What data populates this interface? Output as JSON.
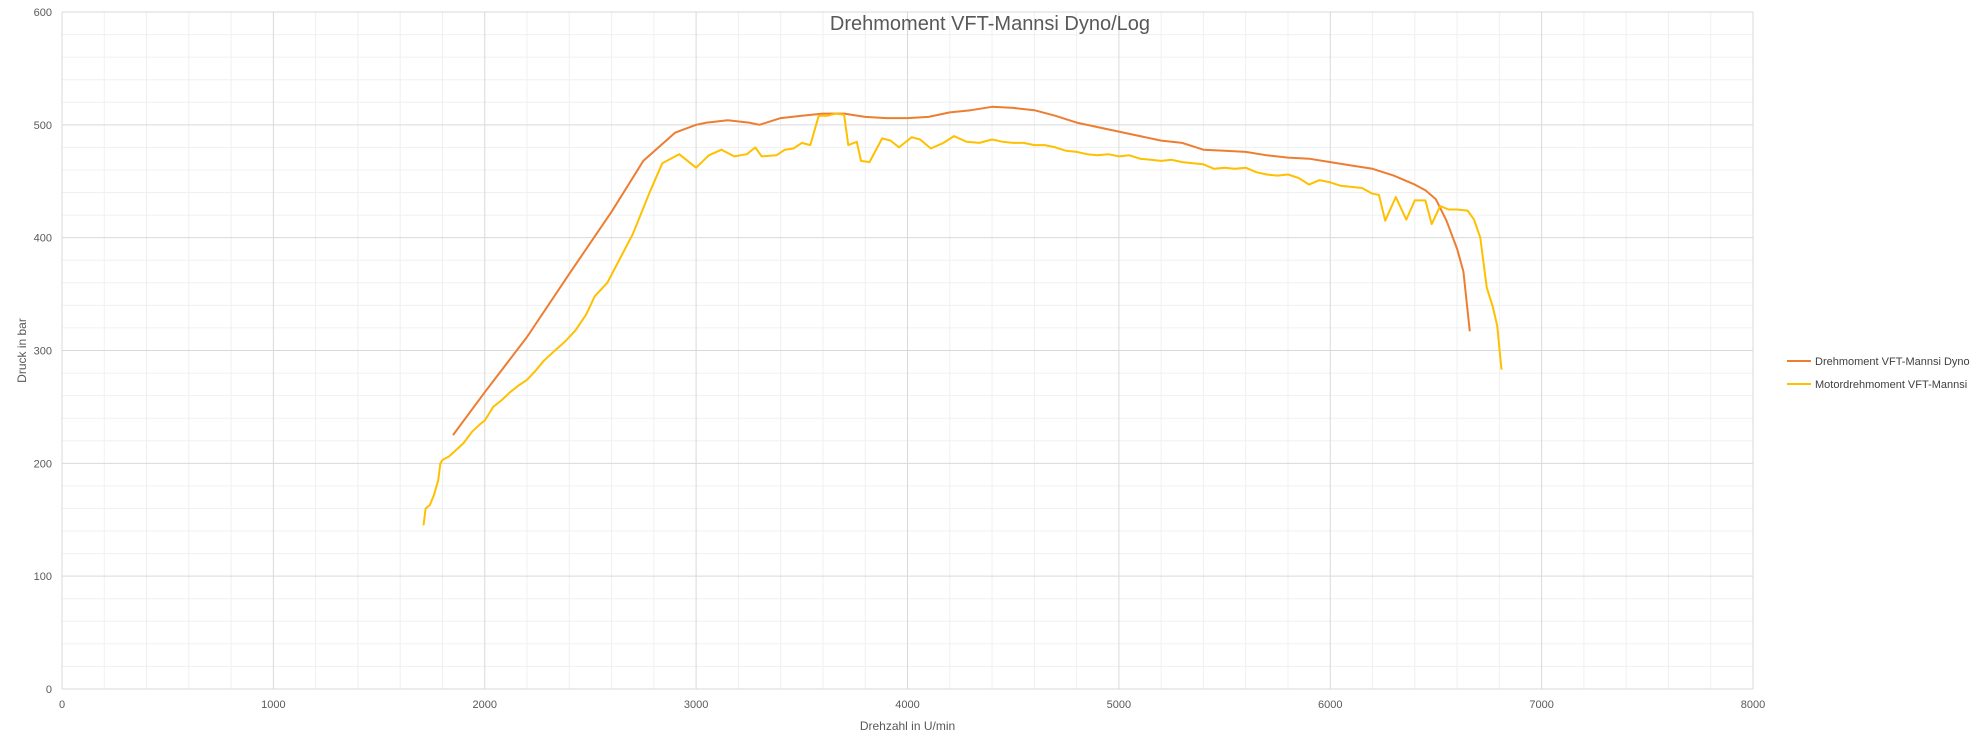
{
  "chart_data": {
    "type": "line",
    "title": "Drehmoment VFT-Mannsi Dyno/Log",
    "xlabel": "Drehzahl in U/min",
    "ylabel": "Druck in bar",
    "xlim": [
      0,
      8000
    ],
    "ylim": [
      0,
      600
    ],
    "x_ticks": [
      0,
      1000,
      2000,
      3000,
      4000,
      5000,
      6000,
      7000,
      8000
    ],
    "y_ticks": [
      0,
      100,
      200,
      300,
      400,
      500,
      600
    ],
    "grid": true,
    "minor_grid": true,
    "legend_position": "right",
    "series": [
      {
        "name": "Drehmoment VFT-Mannsi Dyno",
        "color": "#ED7D31",
        "points": [
          [
            1850,
            225
          ],
          [
            2000,
            263
          ],
          [
            2200,
            312
          ],
          [
            2400,
            368
          ],
          [
            2600,
            423
          ],
          [
            2750,
            468
          ],
          [
            2900,
            493
          ],
          [
            3000,
            500
          ],
          [
            3050,
            502
          ],
          [
            3150,
            504
          ],
          [
            3250,
            502
          ],
          [
            3300,
            500
          ],
          [
            3400,
            506
          ],
          [
            3500,
            508
          ],
          [
            3600,
            510
          ],
          [
            3700,
            510
          ],
          [
            3800,
            507
          ],
          [
            3900,
            506
          ],
          [
            4000,
            506
          ],
          [
            4100,
            507
          ],
          [
            4200,
            511
          ],
          [
            4300,
            513
          ],
          [
            4400,
            516
          ],
          [
            4500,
            515
          ],
          [
            4600,
            513
          ],
          [
            4700,
            508
          ],
          [
            4800,
            502
          ],
          [
            4900,
            498
          ],
          [
            5000,
            494
          ],
          [
            5100,
            490
          ],
          [
            5200,
            486
          ],
          [
            5300,
            484
          ],
          [
            5400,
            478
          ],
          [
            5500,
            477
          ],
          [
            5600,
            476
          ],
          [
            5700,
            473
          ],
          [
            5800,
            471
          ],
          [
            5900,
            470
          ],
          [
            6000,
            467
          ],
          [
            6100,
            464
          ],
          [
            6200,
            461
          ],
          [
            6300,
            455
          ],
          [
            6400,
            447
          ],
          [
            6450,
            442
          ],
          [
            6500,
            434
          ],
          [
            6550,
            415
          ],
          [
            6600,
            390
          ],
          [
            6630,
            370
          ],
          [
            6660,
            317
          ]
        ]
      },
      {
        "name": "Motordrehmoment VFT-Mannsi",
        "color": "#FFC000",
        "points": [
          [
            1710,
            145
          ],
          [
            1720,
            160
          ],
          [
            1740,
            163
          ],
          [
            1760,
            172
          ],
          [
            1780,
            185
          ],
          [
            1790,
            200
          ],
          [
            1800,
            203
          ],
          [
            1830,
            206
          ],
          [
            1860,
            211
          ],
          [
            1900,
            218
          ],
          [
            1940,
            228
          ],
          [
            1980,
            235
          ],
          [
            2000,
            238
          ],
          [
            2040,
            250
          ],
          [
            2080,
            256
          ],
          [
            2120,
            263
          ],
          [
            2160,
            269
          ],
          [
            2200,
            274
          ],
          [
            2240,
            282
          ],
          [
            2280,
            291
          ],
          [
            2320,
            298
          ],
          [
            2380,
            308
          ],
          [
            2430,
            318
          ],
          [
            2480,
            332
          ],
          [
            2520,
            348
          ],
          [
            2580,
            360
          ],
          [
            2630,
            378
          ],
          [
            2700,
            403
          ],
          [
            2780,
            440
          ],
          [
            2840,
            466
          ],
          [
            2920,
            474
          ],
          [
            3000,
            462
          ],
          [
            3060,
            473
          ],
          [
            3120,
            478
          ],
          [
            3180,
            472
          ],
          [
            3240,
            474
          ],
          [
            3280,
            480
          ],
          [
            3310,
            472
          ],
          [
            3380,
            473
          ],
          [
            3420,
            478
          ],
          [
            3460,
            479
          ],
          [
            3500,
            484
          ],
          [
            3540,
            482
          ],
          [
            3580,
            508
          ],
          [
            3620,
            508
          ],
          [
            3660,
            510
          ],
          [
            3700,
            509
          ],
          [
            3720,
            482
          ],
          [
            3760,
            485
          ],
          [
            3780,
            468
          ],
          [
            3820,
            467
          ],
          [
            3880,
            488
          ],
          [
            3920,
            486
          ],
          [
            3960,
            480
          ],
          [
            4020,
            489
          ],
          [
            4060,
            487
          ],
          [
            4110,
            479
          ],
          [
            4170,
            484
          ],
          [
            4220,
            490
          ],
          [
            4280,
            485
          ],
          [
            4340,
            484
          ],
          [
            4400,
            487
          ],
          [
            4450,
            485
          ],
          [
            4500,
            484
          ],
          [
            4550,
            484
          ],
          [
            4600,
            482
          ],
          [
            4650,
            482
          ],
          [
            4700,
            480
          ],
          [
            4750,
            477
          ],
          [
            4800,
            476
          ],
          [
            4850,
            474
          ],
          [
            4900,
            473
          ],
          [
            4950,
            474
          ],
          [
            5000,
            472
          ],
          [
            5050,
            473
          ],
          [
            5100,
            470
          ],
          [
            5150,
            469
          ],
          [
            5200,
            468
          ],
          [
            5250,
            469
          ],
          [
            5300,
            467
          ],
          [
            5350,
            466
          ],
          [
            5400,
            465
          ],
          [
            5450,
            461
          ],
          [
            5500,
            462
          ],
          [
            5550,
            461
          ],
          [
            5600,
            462
          ],
          [
            5650,
            458
          ],
          [
            5700,
            456
          ],
          [
            5750,
            455
          ],
          [
            5800,
            456
          ],
          [
            5850,
            453
          ],
          [
            5900,
            447
          ],
          [
            5950,
            451
          ],
          [
            6000,
            449
          ],
          [
            6050,
            446
          ],
          [
            6100,
            445
          ],
          [
            6150,
            444
          ],
          [
            6200,
            439
          ],
          [
            6230,
            438
          ],
          [
            6260,
            415
          ],
          [
            6310,
            436
          ],
          [
            6360,
            416
          ],
          [
            6400,
            433
          ],
          [
            6450,
            433
          ],
          [
            6480,
            412
          ],
          [
            6520,
            428
          ],
          [
            6560,
            425
          ],
          [
            6600,
            425
          ],
          [
            6650,
            424
          ],
          [
            6680,
            416
          ],
          [
            6710,
            400
          ],
          [
            6740,
            356
          ],
          [
            6770,
            338
          ],
          [
            6790,
            322
          ],
          [
            6810,
            283
          ]
        ]
      }
    ]
  }
}
